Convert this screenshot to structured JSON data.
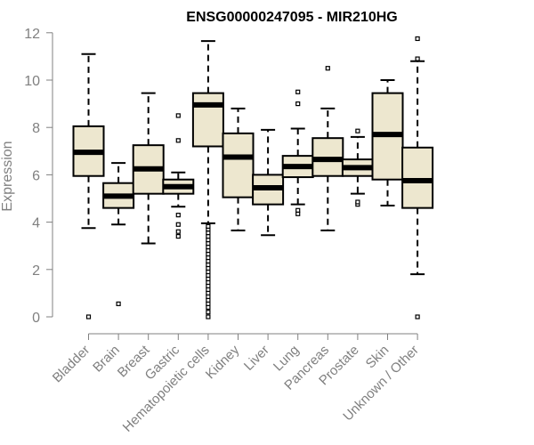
{
  "chart_data": {
    "type": "box",
    "title": "ENSG00000247095 - MIR210HG",
    "xlabel": "",
    "ylabel": "Expression",
    "ylim": [
      0,
      12
    ],
    "yticks": [
      0,
      2,
      4,
      6,
      8,
      10,
      12
    ],
    "box_fill": "#EDE7CF",
    "categories": [
      "Bladder",
      "Brain",
      "Breast",
      "Gastric",
      "Hematopoietic cells",
      "Kidney",
      "Liver",
      "Lung",
      "Pancreas",
      "Prostate",
      "Skin",
      "Unknown / Other"
    ],
    "boxes": [
      {
        "category": "Bladder",
        "whisker_low": 3.75,
        "q1": 5.95,
        "median": 6.95,
        "q3": 8.05,
        "whisker_high": 11.1,
        "outliers": [
          0.0
        ]
      },
      {
        "category": "Brain",
        "whisker_low": 3.9,
        "q1": 4.6,
        "median": 5.1,
        "q3": 5.65,
        "whisker_high": 6.5,
        "outliers": [
          0.55
        ]
      },
      {
        "category": "Breast",
        "whisker_low": 3.1,
        "q1": 5.2,
        "median": 6.25,
        "q3": 7.25,
        "whisker_high": 9.45,
        "outliers": []
      },
      {
        "category": "Gastric",
        "whisker_low": 4.65,
        "q1": 5.2,
        "median": 5.5,
        "q3": 5.8,
        "whisker_high": 6.1,
        "outliers": [
          3.4,
          3.6,
          3.9,
          4.3,
          7.45,
          8.5
        ]
      },
      {
        "category": "Hematopoietic cells",
        "whisker_low": 3.95,
        "q1": 7.2,
        "median": 8.95,
        "q3": 9.45,
        "whisker_high": 11.65,
        "outliers": [
          0.0,
          0.2,
          0.4,
          0.55,
          0.7,
          0.85,
          1.0,
          1.15,
          1.3,
          1.45,
          1.6,
          1.75,
          1.9,
          2.05,
          2.2,
          2.35,
          2.5,
          2.65,
          2.8,
          2.95,
          3.1,
          3.25,
          3.4,
          3.55,
          3.7,
          3.82
        ]
      },
      {
        "category": "Kidney",
        "whisker_low": 3.65,
        "q1": 5.05,
        "median": 6.75,
        "q3": 7.75,
        "whisker_high": 8.8,
        "outliers": []
      },
      {
        "category": "Liver",
        "whisker_low": 3.45,
        "q1": 4.75,
        "median": 5.45,
        "q3": 6.0,
        "whisker_high": 7.9,
        "outliers": []
      },
      {
        "category": "Lung",
        "whisker_low": 4.75,
        "q1": 5.9,
        "median": 6.35,
        "q3": 6.8,
        "whisker_high": 7.95,
        "outliers": [
          4.35,
          4.5,
          9.0,
          9.5
        ]
      },
      {
        "category": "Pancreas",
        "whisker_low": 3.65,
        "q1": 5.95,
        "median": 6.65,
        "q3": 7.55,
        "whisker_high": 8.8,
        "outliers": [
          10.5
        ]
      },
      {
        "category": "Prostate",
        "whisker_low": 5.2,
        "q1": 5.95,
        "median": 6.3,
        "q3": 6.65,
        "whisker_high": 7.6,
        "outliers": [
          4.75,
          4.85,
          7.85
        ]
      },
      {
        "category": "Skin",
        "whisker_low": 4.7,
        "q1": 5.8,
        "median": 7.7,
        "q3": 9.45,
        "whisker_high": 10.0,
        "outliers": []
      },
      {
        "category": "Unknown / Other",
        "whisker_low": 1.8,
        "q1": 4.6,
        "median": 5.75,
        "q3": 7.15,
        "whisker_high": 10.8,
        "outliers": [
          0.0,
          10.9,
          11.75
        ]
      }
    ]
  }
}
